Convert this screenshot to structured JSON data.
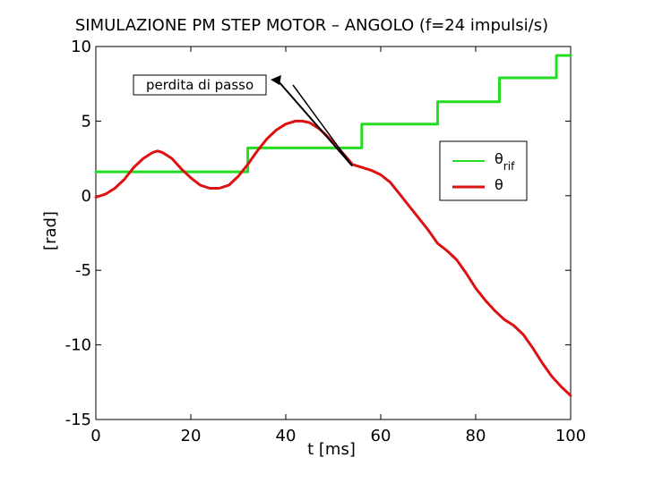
{
  "chart_data": {
    "type": "line",
    "title": "SIMULAZIONE PM STEP MOTOR – ANGOLO (f=24 impulsi/s)",
    "xlabel": "t [ms]",
    "ylabel": "[rad]",
    "xlim": [
      0,
      100
    ],
    "ylim": [
      -15,
      10
    ],
    "xticks": [
      0,
      20,
      40,
      60,
      80,
      100
    ],
    "yticks": [
      -15,
      -10,
      -5,
      0,
      5,
      10
    ],
    "xtick_labels": [
      "0",
      "20",
      "40",
      "60",
      "80",
      "100"
    ],
    "ytick_labels": [
      "-15",
      "-10",
      "-5",
      "0",
      "5",
      "10"
    ],
    "grid": false,
    "legend": {
      "placement": "right",
      "entries": [
        {
          "main": "θ",
          "sub": "rif",
          "color": "#22dd22"
        },
        {
          "main": "θ",
          "sub": "",
          "color": "#dd1111"
        }
      ]
    },
    "annotation": {
      "text": "perdita di passo",
      "points_to": [
        54,
        2
      ]
    },
    "series": [
      {
        "color": "#22dd22",
        "step": true,
        "x": [
          0,
          32,
          32,
          56,
          56,
          72,
          72,
          85,
          85,
          97,
          97,
          100
        ],
        "y": [
          1.6,
          1.6,
          3.2,
          3.2,
          4.8,
          4.8,
          6.3,
          6.3,
          7.9,
          7.9,
          9.4,
          9.4
        ]
      },
      {
        "color": "#dd1111",
        "x": [
          0,
          2,
          4,
          6,
          8,
          10,
          12,
          13,
          14,
          16,
          18,
          20,
          22,
          24,
          25,
          26,
          28,
          30,
          32,
          34,
          36,
          38,
          40,
          42,
          43.5,
          45,
          47,
          49,
          51,
          53,
          54,
          56,
          58,
          60,
          62,
          64,
          66,
          68,
          70,
          72,
          74,
          76,
          78,
          80,
          82,
          84,
          86,
          88,
          90,
          92,
          94,
          96,
          98,
          100
        ],
        "y": [
          -0.1,
          0.1,
          0.5,
          1.1,
          1.9,
          2.5,
          2.9,
          3.0,
          2.9,
          2.5,
          1.8,
          1.2,
          0.7,
          0.5,
          0.5,
          0.5,
          0.7,
          1.3,
          2.1,
          3.0,
          3.8,
          4.4,
          4.8,
          5.0,
          5.0,
          4.9,
          4.5,
          3.9,
          3.2,
          2.5,
          2.1,
          1.9,
          1.7,
          1.4,
          0.9,
          0.1,
          -0.7,
          -1.5,
          -2.3,
          -3.2,
          -3.7,
          -4.3,
          -5.2,
          -6.2,
          -7.0,
          -7.7,
          -8.3,
          -8.7,
          -9.3,
          -10.2,
          -11.2,
          -12.1,
          -12.8,
          -13.4
        ]
      }
    ]
  }
}
